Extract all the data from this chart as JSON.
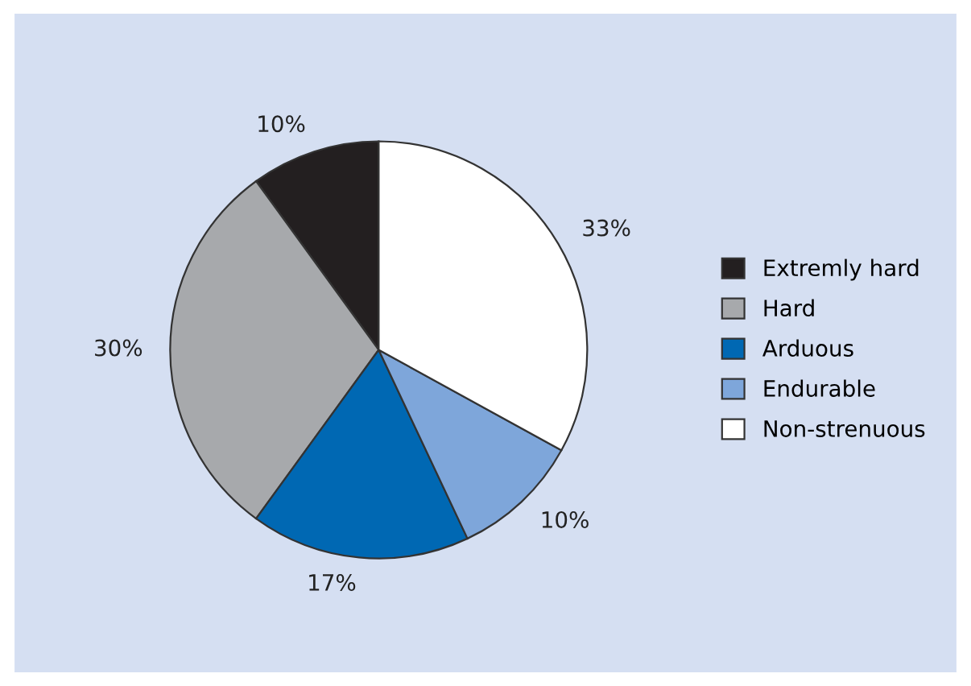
{
  "chart_data": {
    "type": "pie",
    "categories": [
      "Extremly hard",
      "Hard",
      "Arduous",
      "Endurable",
      "Non-strenuous"
    ],
    "values": [
      10,
      30,
      17,
      10,
      33
    ],
    "value_labels": [
      "10%",
      "30%",
      "17%",
      "10%",
      "33%"
    ],
    "colors": [
      "#231f20",
      "#a7a9ac",
      "#0068b3",
      "#7ea6da",
      "#ffffff"
    ],
    "legend": "right"
  }
}
